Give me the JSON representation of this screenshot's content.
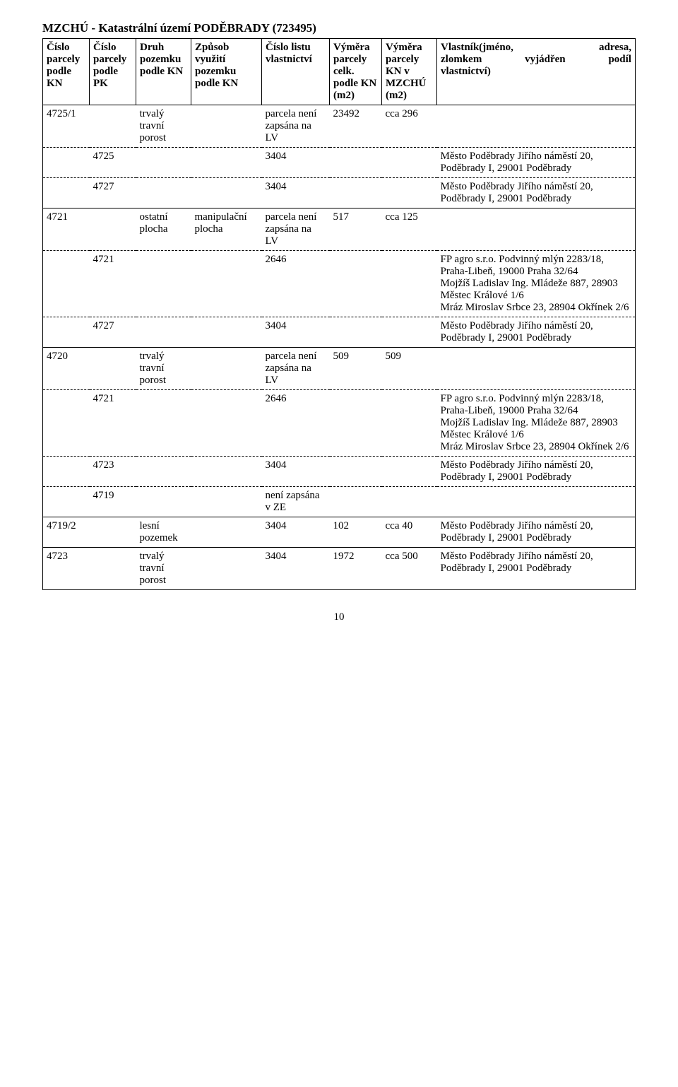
{
  "title_line": "MZCHÚ   -   Katastrální území PODĚBRADY (723495)",
  "headers": {
    "c1": "Číslo parcely podle KN",
    "c2": "Číslo parcely podle PK",
    "c3": "Druh pozemku podle KN",
    "c4": "Způsob využití pozemku podle KN",
    "c5": "Číslo listu vlastnictví",
    "c6": "Výměra parcely celk. podle KN (m2)",
    "c7": "Výměra parcely KN v MZCHÚ (m2)",
    "c8_l1": "Vlastník(jméno,",
    "c8_l2": "adresa,",
    "c8_l3": "zlomkem",
    "c8_l4": "vyjádřen",
    "c8_l5": "podíl",
    "c8_l6": "vlastnictví)"
  },
  "rows": {
    "r1": {
      "c1": "4725/1",
      "c3": "trvalý travní porost",
      "c5": "parcela není zapsána na LV",
      "c6": "23492",
      "c7": "cca 296"
    },
    "r2": {
      "c2": "4725",
      "c5": "3404",
      "c8": "Město Poděbrady Jiřího náměstí 20, Poděbrady I, 29001 Poděbrady"
    },
    "r3": {
      "c2": "4727",
      "c5": "3404",
      "c8": "Město Poděbrady Jiřího náměstí 20, Poděbrady I, 29001 Poděbrady"
    },
    "r4": {
      "c1": "4721",
      "c3": "ostatní plocha",
      "c4": "manipulační plocha",
      "c5": "parcela není zapsána na LV",
      "c6": "517",
      "c7": "cca 125"
    },
    "r5": {
      "c2": "4721",
      "c5": "2646",
      "c8": "FP agro s.r.o. Podvinný mlýn 2283/18, Praha-Libeň, 19000 Praha 32/64\nMojžíš Ladislav Ing. Mládeže 887, 28903 Městec Králové 1/6\nMráz Miroslav Srbce 23, 28904 Okřínek 2/6"
    },
    "r6": {
      "c2": "4727",
      "c5": "3404",
      "c8": "Město Poděbrady Jiřího náměstí 20, Poděbrady I, 29001 Poděbrady"
    },
    "r7": {
      "c1": "4720",
      "c3": "trvalý travní porost",
      "c5": "parcela není zapsána na LV",
      "c6": "509",
      "c7": "509"
    },
    "r8": {
      "c2": "4721",
      "c5": "2646",
      "c8": "FP agro s.r.o. Podvinný mlýn 2283/18, Praha-Libeň, 19000 Praha 32/64\nMojžíš Ladislav Ing. Mládeže 887, 28903 Městec Králové 1/6\nMráz Miroslav Srbce 23, 28904 Okřínek 2/6"
    },
    "r9": {
      "c2": "4723",
      "c5": "3404",
      "c8": "Město Poděbrady Jiřího náměstí 20, Poděbrady I, 29001 Poděbrady"
    },
    "r10": {
      "c2": "4719",
      "c5": "není zapsána v ZE"
    },
    "r11": {
      "c1": "4719/2",
      "c3": "lesní pozemek",
      "c5": "3404",
      "c6": "102",
      "c7": "cca 40",
      "c8": "Město Poděbrady Jiřího náměstí 20, Poděbrady I, 29001 Poděbrady"
    },
    "r12": {
      "c1": "4723",
      "c3": "trvalý travní porost",
      "c5": "3404",
      "c6": "1972",
      "c7": "cca 500",
      "c8": "Město Poděbrady Jiřího náměstí 20, Poděbrady I, 29001 Poděbrady"
    }
  },
  "pagenum": "10",
  "colors": {
    "text": "#000000",
    "bg": "#ffffff",
    "border": "#000000"
  }
}
